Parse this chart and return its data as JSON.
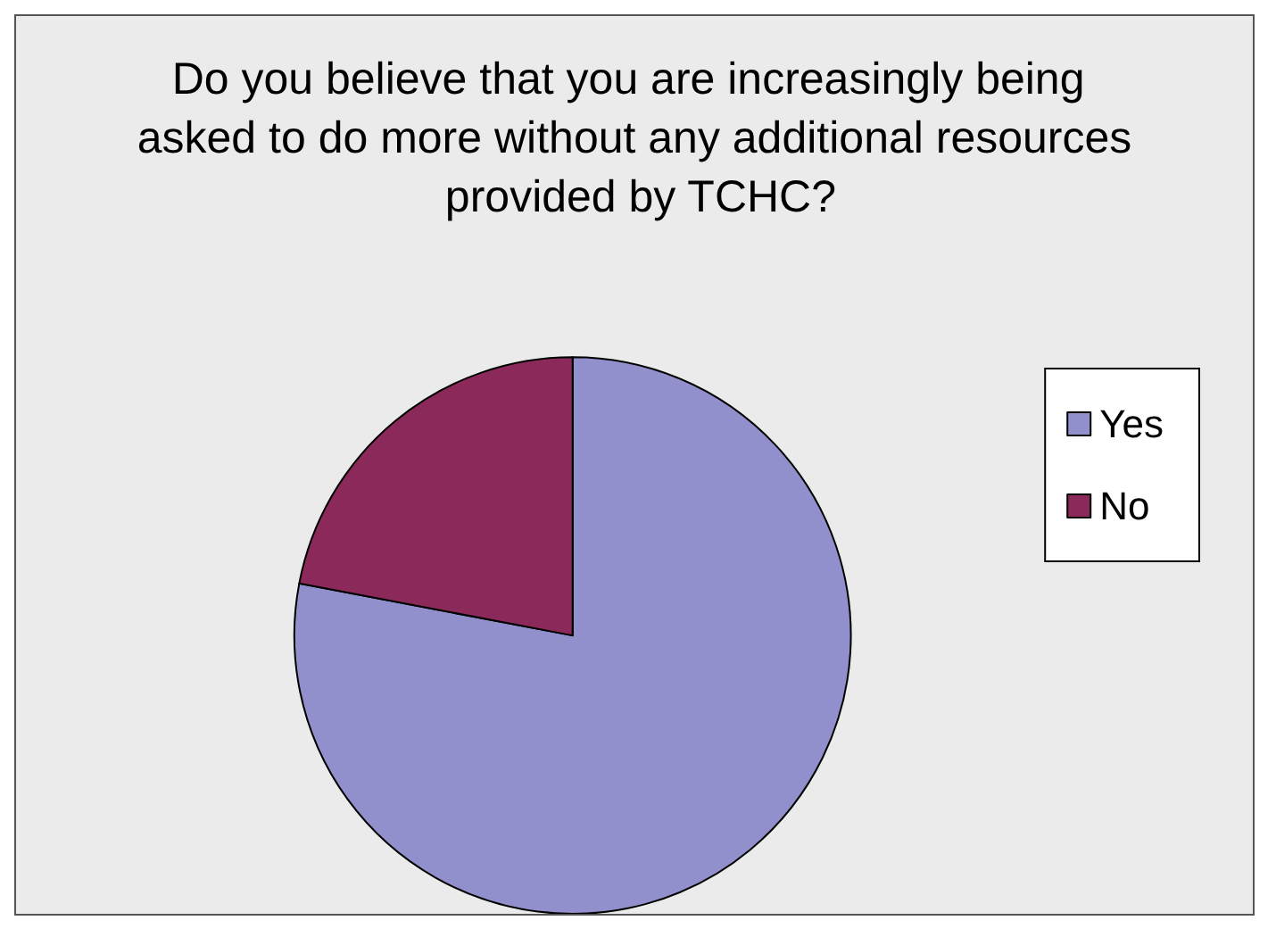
{
  "chart_data": {
    "type": "pie",
    "title": "Do you believe that you are increasingly being asked to do more without any additional resources provided by TCHC?",
    "categories": [
      "Yes",
      "No"
    ],
    "values": [
      78,
      22
    ],
    "colors": [
      "#9290cc",
      "#8b2a5a"
    ],
    "legend": "right"
  }
}
